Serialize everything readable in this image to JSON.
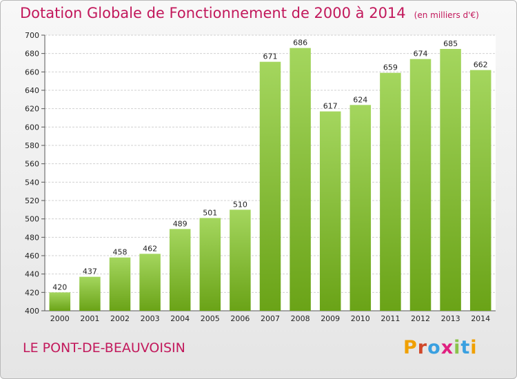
{
  "header": {
    "title": "Dotation Globale de Fonctionnement de 2000 à 2014",
    "unit": "(en milliers d'€)"
  },
  "commune": "LE PONT-DE-BEAUVOISIN",
  "logo": {
    "letters": [
      "P",
      "r",
      "o",
      "x",
      "i",
      "t",
      "i"
    ],
    "colors": [
      "#f0a000",
      "#d0482a",
      "#3aa0e0",
      "#e02080",
      "#8bc34a",
      "#3aa0e0",
      "#f0a000"
    ]
  },
  "colors": {
    "bar_light": "#a4d65e",
    "bar_dark": "#6aa317",
    "title": "#c2185b"
  },
  "chart_data": {
    "type": "bar",
    "categories": [
      "2000",
      "2001",
      "2002",
      "2003",
      "2004",
      "2005",
      "2006",
      "2007",
      "2008",
      "2009",
      "2010",
      "2011",
      "2012",
      "2013",
      "2014"
    ],
    "values": [
      420,
      437,
      458,
      462,
      489,
      501,
      510,
      671,
      686,
      617,
      624,
      659,
      674,
      685,
      662
    ],
    "title": "Dotation Globale de Fonctionnement de 2000 à 2014",
    "ylim": [
      400,
      700
    ],
    "yticks": [
      400,
      420,
      440,
      460,
      480,
      500,
      520,
      540,
      560,
      580,
      600,
      620,
      640,
      660,
      680,
      700
    ],
    "grid": true,
    "data_labels": true
  }
}
